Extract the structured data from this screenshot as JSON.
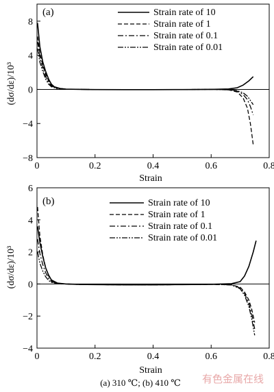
{
  "chart_data": [
    {
      "type": "line",
      "panel_label": "(a)",
      "xlabel": "Strain",
      "ylabel": "(dσ/dε)/10³",
      "xlim": [
        0,
        0.8
      ],
      "ylim": [
        -8,
        10
      ],
      "xticks": [
        "0",
        "0.2",
        "0.4",
        "0.6",
        "0.8"
      ],
      "yticks": [
        "-8",
        "-4",
        "0",
        "4",
        "8"
      ],
      "legend_position": "top-right",
      "series": [
        {
          "name": "Strain rate of 10",
          "dash": "solid",
          "x": [
            0.002,
            0.01,
            0.02,
            0.03,
            0.04,
            0.05,
            0.06,
            0.08,
            0.1,
            0.15,
            0.2,
            0.3,
            0.4,
            0.5,
            0.6,
            0.66,
            0.69,
            0.71,
            0.73,
            0.745
          ],
          "y": [
            7.8,
            5.0,
            3.2,
            2.1,
            1.2,
            0.6,
            0.3,
            0.1,
            0.03,
            0.0,
            -0.02,
            -0.03,
            -0.03,
            -0.02,
            0.0,
            0.05,
            0.2,
            0.5,
            1.0,
            1.5
          ]
        },
        {
          "name": "Strain rate of 1",
          "dash": "dashed",
          "x": [
            0.002,
            0.01,
            0.02,
            0.03,
            0.04,
            0.05,
            0.07,
            0.1,
            0.15,
            0.2,
            0.3,
            0.4,
            0.5,
            0.6,
            0.66,
            0.69,
            0.71,
            0.725,
            0.735,
            0.745
          ],
          "y": [
            6.2,
            4.2,
            2.8,
            1.8,
            1.0,
            0.5,
            0.15,
            0.03,
            0.0,
            -0.02,
            -0.03,
            -0.03,
            -0.02,
            0.0,
            -0.05,
            -0.3,
            -1.0,
            -2.2,
            -4.0,
            -6.5
          ]
        },
        {
          "name": "Strain rate of 0.1",
          "dash": "dashdot",
          "x": [
            0.002,
            0.01,
            0.02,
            0.03,
            0.04,
            0.05,
            0.07,
            0.1,
            0.15,
            0.2,
            0.3,
            0.4,
            0.5,
            0.6,
            0.66,
            0.69,
            0.71,
            0.725,
            0.735,
            0.745
          ],
          "y": [
            5.6,
            3.8,
            2.5,
            1.5,
            0.8,
            0.4,
            0.1,
            0.02,
            0.0,
            -0.02,
            -0.03,
            -0.03,
            -0.02,
            0.0,
            -0.05,
            -0.2,
            -0.6,
            -1.2,
            -2.0,
            -3.0
          ]
        },
        {
          "name": "Strain rate of 0.01",
          "dash": "dashdotdot",
          "x": [
            0.002,
            0.01,
            0.02,
            0.03,
            0.04,
            0.05,
            0.07,
            0.1,
            0.15,
            0.2,
            0.3,
            0.4,
            0.5,
            0.6,
            0.66,
            0.69,
            0.71,
            0.725,
            0.735,
            0.745
          ],
          "y": [
            4.8,
            3.2,
            2.1,
            1.2,
            0.6,
            0.3,
            0.08,
            0.02,
            0.0,
            -0.02,
            -0.03,
            -0.03,
            -0.02,
            0.0,
            -0.03,
            -0.15,
            -0.4,
            -0.8,
            -1.3,
            -1.8
          ]
        }
      ]
    },
    {
      "type": "line",
      "panel_label": "(b)",
      "xlabel": "Strain",
      "ylabel": "(dσ/dε)/10³",
      "xlim": [
        0,
        0.8
      ],
      "ylim": [
        -4,
        6
      ],
      "xticks": [
        "0",
        "0.2",
        "0.4",
        "0.6",
        "0.8"
      ],
      "yticks": [
        "-4",
        "-2",
        "0",
        "2",
        "4",
        "6"
      ],
      "legend_position": "top-right",
      "series": [
        {
          "name": "Strain rate of 10",
          "dash": "solid",
          "x": [
            0.002,
            0.01,
            0.02,
            0.03,
            0.04,
            0.05,
            0.07,
            0.1,
            0.15,
            0.2,
            0.3,
            0.4,
            0.5,
            0.6,
            0.67,
            0.7,
            0.715,
            0.73,
            0.745,
            0.755
          ],
          "y": [
            3.6,
            2.6,
            1.7,
            1.0,
            0.55,
            0.25,
            0.06,
            0.0,
            -0.03,
            -0.04,
            -0.05,
            -0.05,
            -0.04,
            -0.02,
            0.02,
            0.15,
            0.5,
            1.1,
            2.0,
            2.7
          ]
        },
        {
          "name": "Strain rate of 1",
          "dash": "dashed",
          "x": [
            0.002,
            0.01,
            0.02,
            0.03,
            0.04,
            0.05,
            0.07,
            0.1,
            0.15,
            0.2,
            0.3,
            0.4,
            0.5,
            0.6,
            0.67,
            0.7,
            0.715,
            0.73,
            0.74,
            0.75
          ],
          "y": [
            4.8,
            3.0,
            1.8,
            1.0,
            0.5,
            0.2,
            0.05,
            0.0,
            -0.03,
            -0.04,
            -0.05,
            -0.05,
            -0.04,
            -0.02,
            -0.05,
            -0.2,
            -0.5,
            -1.0,
            -1.6,
            -2.4
          ]
        },
        {
          "name": "Strain rate of 0.1",
          "dash": "dashdot",
          "x": [
            0.002,
            0.01,
            0.02,
            0.03,
            0.04,
            0.05,
            0.07,
            0.1,
            0.15,
            0.2,
            0.3,
            0.4,
            0.5,
            0.6,
            0.67,
            0.7,
            0.715,
            0.73,
            0.74,
            0.75
          ],
          "y": [
            2.8,
            1.9,
            1.2,
            0.7,
            0.35,
            0.15,
            0.03,
            0.0,
            -0.03,
            -0.04,
            -0.05,
            -0.05,
            -0.04,
            -0.02,
            -0.05,
            -0.25,
            -0.6,
            -1.2,
            -1.9,
            -2.8
          ]
        },
        {
          "name": "Strain rate of 0.01",
          "dash": "dashdotdot",
          "x": [
            0.002,
            0.01,
            0.02,
            0.03,
            0.04,
            0.05,
            0.07,
            0.1,
            0.15,
            0.2,
            0.3,
            0.4,
            0.5,
            0.6,
            0.67,
            0.7,
            0.715,
            0.73,
            0.74,
            0.75
          ],
          "y": [
            2.0,
            1.3,
            0.8,
            0.45,
            0.22,
            0.1,
            0.02,
            0.0,
            -0.03,
            -0.04,
            -0.05,
            -0.05,
            -0.04,
            -0.02,
            -0.06,
            -0.3,
            -0.7,
            -1.4,
            -2.2,
            -3.2
          ]
        }
      ]
    }
  ],
  "caption": "(a) 310 ℃; (b) 410 ℃",
  "watermark": "有色金属在线"
}
